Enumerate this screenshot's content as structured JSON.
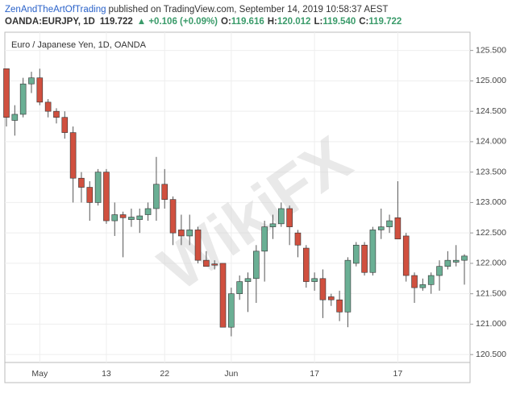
{
  "header": {
    "author": "ZenAndTheArtOfTrading",
    "published": "published on TradingView.com, September 14, 2019 10:58:37 AEST",
    "symbol": "OANDA:EURJPY, 1D",
    "last": "119.722",
    "change": "▲ +0.106 (+0.09%)",
    "o_label": "O:",
    "o": "119.616",
    "h_label": "H:",
    "h": "120.012",
    "l_label": "L:",
    "l": "119.540",
    "c_label": "C:",
    "c": "119.722"
  },
  "watermark": "WikiFX",
  "chart_data": {
    "type": "candlestick",
    "title": "Euro / Japanese Yen, 1D, OANDA",
    "categories": [
      null,
      null,
      null,
      null,
      "May",
      null,
      null,
      null,
      null,
      null,
      null,
      null,
      "13",
      null,
      null,
      null,
      null,
      null,
      null,
      "22",
      null,
      null,
      null,
      null,
      null,
      null,
      null,
      "Jun",
      null,
      null,
      null,
      null,
      null,
      null,
      null,
      null,
      null,
      "17",
      null,
      null,
      null,
      null,
      null,
      null,
      null,
      null,
      null,
      "17",
      null,
      null,
      null,
      null,
      null,
      null,
      null,
      null
    ],
    "open": [
      125.2,
      124.35,
      124.45,
      124.95,
      125.05,
      124.65,
      124.5,
      124.4,
      124.15,
      123.4,
      123.25,
      123.0,
      123.5,
      122.7,
      122.8,
      122.72,
      122.72,
      122.8,
      122.9,
      123.3,
      123.05,
      122.55,
      122.45,
      122.55,
      122.05,
      121.99,
      122.0,
      120.95,
      121.5,
      121.7,
      121.75,
      122.2,
      122.6,
      122.65,
      122.9,
      122.5,
      122.25,
      121.7,
      121.75,
      121.45,
      121.4,
      121.2,
      122.0,
      122.3,
      121.85,
      122.55,
      122.6,
      122.75,
      122.45,
      121.8,
      121.6,
      121.65,
      121.8,
      121.95,
      122.02,
      122.05
    ],
    "high": [
      125.2,
      124.6,
      125.05,
      125.15,
      125.2,
      124.7,
      124.55,
      124.5,
      124.25,
      123.5,
      123.35,
      123.55,
      123.55,
      123.0,
      122.85,
      122.9,
      122.9,
      123.0,
      123.75,
      123.55,
      123.1,
      122.8,
      122.8,
      122.6,
      122.2,
      122.05,
      122.0,
      121.6,
      121.8,
      121.85,
      122.3,
      122.7,
      122.8,
      123.0,
      122.95,
      122.55,
      122.3,
      121.85,
      121.9,
      121.5,
      121.55,
      122.1,
      122.35,
      122.35,
      122.6,
      122.9,
      122.8,
      123.35,
      122.5,
      121.85,
      121.75,
      121.85,
      122.05,
      122.2,
      122.3,
      122.15
    ],
    "low": [
      124.25,
      124.1,
      124.4,
      124.8,
      124.6,
      124.4,
      124.3,
      124.05,
      123.0,
      123.0,
      122.7,
      122.95,
      122.65,
      122.45,
      122.1,
      122.6,
      122.5,
      122.7,
      122.7,
      122.9,
      122.3,
      122.3,
      122.3,
      122.0,
      121.95,
      121.9,
      120.95,
      120.8,
      121.4,
      121.2,
      121.35,
      121.7,
      122.4,
      122.6,
      122.3,
      122.1,
      121.6,
      121.55,
      121.1,
      121.3,
      121.05,
      120.95,
      121.95,
      121.8,
      121.8,
      122.4,
      122.5,
      122.4,
      121.7,
      121.35,
      121.55,
      121.5,
      121.55,
      121.9,
      121.95,
      121.65
    ],
    "close": [
      124.4,
      124.45,
      124.95,
      125.05,
      124.65,
      124.5,
      124.4,
      124.15,
      123.4,
      123.25,
      123.0,
      123.5,
      122.7,
      122.8,
      122.75,
      122.76,
      122.78,
      122.9,
      123.3,
      123.05,
      122.5,
      122.45,
      122.55,
      122.05,
      121.95,
      121.97,
      120.95,
      121.5,
      121.7,
      121.75,
      122.2,
      122.6,
      122.65,
      122.9,
      122.6,
      122.3,
      121.7,
      121.75,
      121.4,
      121.4,
      121.2,
      122.05,
      122.3,
      121.85,
      122.55,
      122.6,
      122.7,
      122.4,
      121.8,
      121.6,
      121.65,
      121.8,
      121.95,
      122.05,
      122.05,
      122.12
    ],
    "up_color": "#6aaf94",
    "down_color": "#d0503f",
    "ylim": [
      120.37,
      125.8
    ],
    "yticks": [
      {
        "value": 120.5,
        "label": "120.500"
      },
      {
        "value": 121,
        "label": "121.000"
      },
      {
        "value": 121.5,
        "label": "121.500"
      },
      {
        "value": 122,
        "label": "122.000"
      },
      {
        "value": 122.5,
        "label": "122.500"
      },
      {
        "value": 123,
        "label": "123.000"
      },
      {
        "value": 123.5,
        "label": "123.500"
      },
      {
        "value": 124,
        "label": "124.000"
      },
      {
        "value": 124.5,
        "label": "124.500"
      },
      {
        "value": 125,
        "label": "125.000"
      },
      {
        "value": 125.5,
        "label": "125.500"
      }
    ],
    "grid": true
  }
}
